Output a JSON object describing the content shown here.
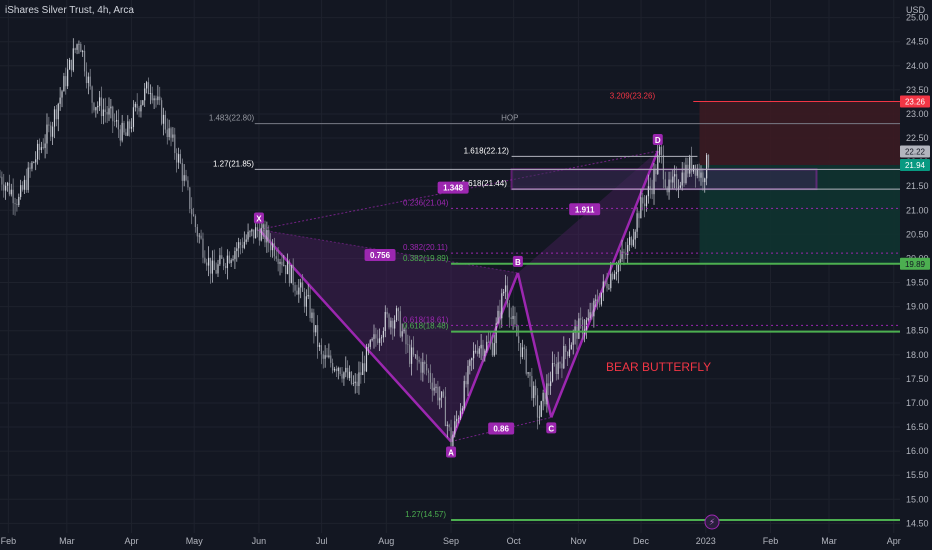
{
  "window": {
    "title": "iShares Silver Trust, 4h, Arca"
  },
  "colors": {
    "bg": "#131722",
    "grid": "#1e222d",
    "up": "#d1d4dc",
    "down": "#8c909a",
    "pattern": "#9c27b0",
    "pattern_fill": "#4a1f5e",
    "green": "#4caf50",
    "red": "#f23645",
    "stop_fill": "#3b1b22",
    "target_fill": "#0f3330"
  },
  "chart_data": {
    "type": "candlestick",
    "ylabel": "USD",
    "ylim": [
      14.3,
      25.2
    ],
    "yticks": [
      "14.50",
      "15.00",
      "15.50",
      "16.00",
      "16.50",
      "17.00",
      "17.50",
      "18.00",
      "18.50",
      "19.00",
      "19.50",
      "20.00",
      "20.50",
      "21.00",
      "21.50",
      "22.00",
      "22.50",
      "23.00",
      "23.50",
      "24.00",
      "24.50",
      "25.00"
    ],
    "xticks": [
      {
        "label": "Feb",
        "d": 0
      },
      {
        "label": "Mar",
        "d": 28
      },
      {
        "label": "Apr",
        "d": 59
      },
      {
        "label": "May",
        "d": 89
      },
      {
        "label": "Jun",
        "d": 120
      },
      {
        "label": "Jul",
        "d": 150
      },
      {
        "label": "Aug",
        "d": 181
      },
      {
        "label": "Sep",
        "d": 212
      },
      {
        "label": "Oct",
        "d": 242
      },
      {
        "label": "Nov",
        "d": 273
      },
      {
        "label": "Dec",
        "d": 303
      },
      {
        "label": "2023",
        "d": 334
      },
      {
        "label": "Feb",
        "d": 365
      },
      {
        "label": "Mar",
        "d": 393
      },
      {
        "label": "Apr",
        "d": 424
      }
    ],
    "xlim": [
      -4,
      427
    ],
    "price_path": [
      [
        -4,
        21.7
      ],
      [
        5,
        21.2
      ],
      [
        12,
        22.0
      ],
      [
        20,
        22.7
      ],
      [
        28,
        23.8
      ],
      [
        34,
        24.6
      ],
      [
        40,
        23.3
      ],
      [
        48,
        23.0
      ],
      [
        56,
        22.5
      ],
      [
        62,
        23.2
      ],
      [
        68,
        23.6
      ],
      [
        75,
        22.8
      ],
      [
        82,
        22.0
      ],
      [
        90,
        20.6
      ],
      [
        98,
        19.7
      ],
      [
        106,
        20.1
      ],
      [
        114,
        20.4
      ],
      [
        120,
        20.6
      ],
      [
        128,
        20.2
      ],
      [
        136,
        19.6
      ],
      [
        144,
        19.0
      ],
      [
        150,
        17.9
      ],
      [
        158,
        17.8
      ],
      [
        166,
        17.3
      ],
      [
        172,
        18.0
      ],
      [
        180,
        18.7
      ],
      [
        186,
        18.8
      ],
      [
        192,
        18.0
      ],
      [
        200,
        17.7
      ],
      [
        208,
        17.0
      ],
      [
        212,
        16.2
      ],
      [
        218,
        17.2
      ],
      [
        224,
        18.2
      ],
      [
        232,
        18.2
      ],
      [
        238,
        19.5
      ],
      [
        241,
        18.7
      ],
      [
        248,
        17.8
      ],
      [
        254,
        16.7
      ],
      [
        260,
        17.6
      ],
      [
        266,
        18.0
      ],
      [
        272,
        18.5
      ],
      [
        278,
        18.7
      ],
      [
        284,
        19.3
      ],
      [
        290,
        19.8
      ],
      [
        296,
        20.1
      ],
      [
        302,
        21.0
      ],
      [
        308,
        21.5
      ],
      [
        312,
        22.2
      ],
      [
        316,
        21.4
      ],
      [
        322,
        21.7
      ],
      [
        328,
        22.0
      ],
      [
        332,
        21.7
      ],
      [
        336,
        22.1
      ]
    ],
    "pattern": {
      "name": "BEAR BUTTERFLY",
      "points": [
        {
          "label": "X",
          "d": 120,
          "price": 20.6
        },
        {
          "label": "A",
          "d": 212,
          "price": 16.2
        },
        {
          "label": "B",
          "d": 244,
          "price": 19.7
        },
        {
          "label": "C",
          "d": 260,
          "price": 16.7
        },
        {
          "label": "D",
          "d": 311,
          "price": 22.23
        }
      ],
      "ratios": [
        {
          "text": "0.756",
          "d": 178,
          "price": 20.05
        },
        {
          "text": "0.86",
          "d": 236,
          "price": 16.45
        },
        {
          "text": "1.911",
          "d": 276,
          "price": 21.0
        },
        {
          "text": "1.348",
          "d": 213,
          "price": 21.45
        }
      ]
    },
    "levels": [
      {
        "text": "3.209(23.26)",
        "price": 23.26,
        "color": "#f23645",
        "x0": 328,
        "x1": 427,
        "label_d": 288,
        "label_color": "#f23645"
      },
      {
        "text": "1.483(22.80)",
        "price": 22.8,
        "color": "#787b86",
        "x0": 118,
        "x1": 427,
        "label_d": 96,
        "label_color": "#9598a1"
      },
      {
        "text": "1.618(22.12)",
        "price": 22.12,
        "color": "#b2b5be",
        "x0": 241,
        "x1": 330,
        "label_d": 218,
        "label_color": "#ffffff"
      },
      {
        "text": "1.27(21.85)",
        "price": 21.85,
        "color": "#b2b5be",
        "x0": 118,
        "x1": 427,
        "label_d": 98,
        "label_color": "#ffffff"
      },
      {
        "text": "1.618(21.44)",
        "price": 21.44,
        "color": "#b2b5be",
        "x0": 241,
        "x1": 427,
        "label_d": 217,
        "label_color": "#ffffff"
      },
      {
        "text": "0.236(21.04)",
        "price": 21.04,
        "color": "#9c27b0",
        "x0": 212,
        "x1": 427,
        "label_d": 189,
        "label_color": "#9c27b0",
        "dashed": true
      },
      {
        "text": "0.382(20.11)",
        "price": 20.11,
        "color": "#9c27b0",
        "x0": 212,
        "x1": 427,
        "label_d": 189,
        "label_color": "#9c27b0",
        "dashed": true
      },
      {
        "text": "0.382(19.89)",
        "price": 19.89,
        "color": "#4caf50",
        "x0": 212,
        "x1": 427,
        "label_d": 189,
        "label_color": "#4caf50",
        "thick": true
      },
      {
        "text": "0.618(18.61)",
        "price": 18.61,
        "color": "#9c27b0",
        "x0": 212,
        "x1": 427,
        "label_d": 189,
        "label_color": "#9c27b0",
        "dashed": true
      },
      {
        "text": "0.618(18.48)",
        "price": 18.48,
        "color": "#4caf50",
        "x0": 212,
        "x1": 427,
        "label_d": 189,
        "label_color": "#4caf50",
        "thick": true
      },
      {
        "text": "1.27(14.57)",
        "price": 14.57,
        "color": "#4caf50",
        "x0": 212,
        "x1": 427,
        "label_d": 190,
        "label_color": "#4caf50",
        "thick": true
      }
    ],
    "hop_label": "HOP",
    "prz_box": {
      "d0": 241,
      "d1": 387,
      "p0": 21.44,
      "p1": 21.85
    },
    "position": {
      "d0": 331,
      "d1": 427,
      "entry": 21.94,
      "stop": 23.26,
      "target": 19.89
    },
    "price_tags": [
      {
        "text": "23.26",
        "price": 23.26,
        "bg": "#f23645",
        "fg": "#ffffff"
      },
      {
        "text": "22.22",
        "price": 22.22,
        "bg": "#b2b5be",
        "fg": "#131722"
      },
      {
        "text": "21.94",
        "price": 21.94,
        "bg": "#089981",
        "fg": "#ffffff"
      },
      {
        "text": "19.89",
        "price": 19.89,
        "bg": "#4caf50",
        "fg": "#131722"
      }
    ]
  }
}
